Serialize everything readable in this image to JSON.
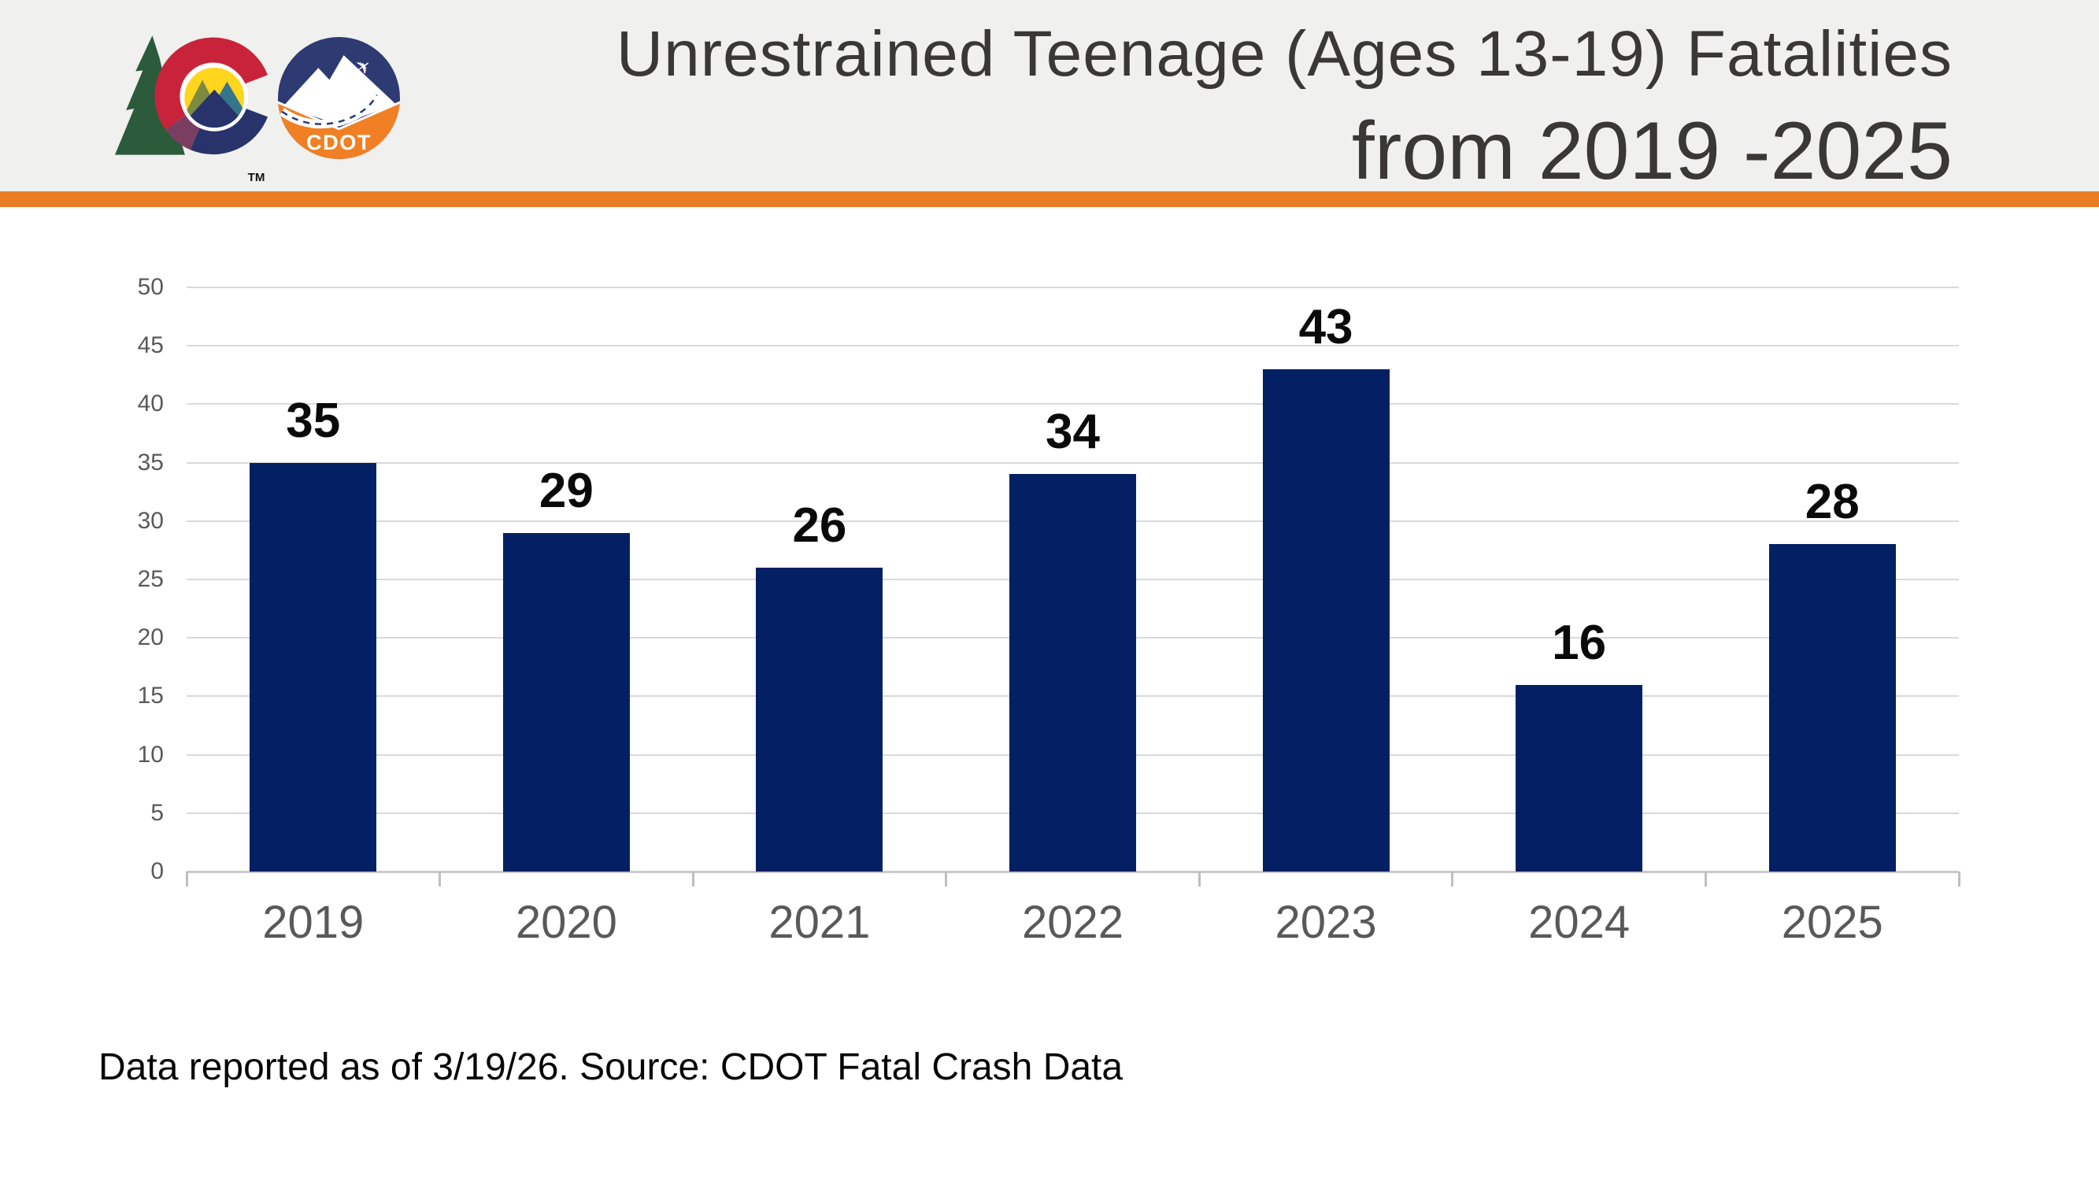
{
  "header": {
    "title_line1": "Unrestrained Teenage (Ages 13-19) Fatalities",
    "title_line2": "from 2019 -2025",
    "accent_color": "#E87D26",
    "colorado_logo": {
      "trademark": "TM"
    },
    "cdot_logo": {
      "label": "CDOT"
    }
  },
  "chart_data": {
    "type": "bar",
    "title": "Unrestrained Teenage (Ages 13-19) Fatalities from 2019 -2025",
    "categories": [
      "2019",
      "2020",
      "2021",
      "2022",
      "2023",
      "2024",
      "2025"
    ],
    "values": [
      35,
      29,
      26,
      34,
      43,
      16,
      28
    ],
    "xlabel": "",
    "ylabel": "",
    "ylim": [
      0,
      50
    ],
    "ytick_step": 5,
    "grid": true,
    "legend": false,
    "bar_color": "#032064",
    "data_label_color": "#0A0A0A",
    "axis_label_color": "#595959",
    "gridline_color": "#D9D9D9"
  },
  "footer": {
    "note": "Data reported as of 3/19/26. Source: CDOT Fatal Crash Data"
  }
}
